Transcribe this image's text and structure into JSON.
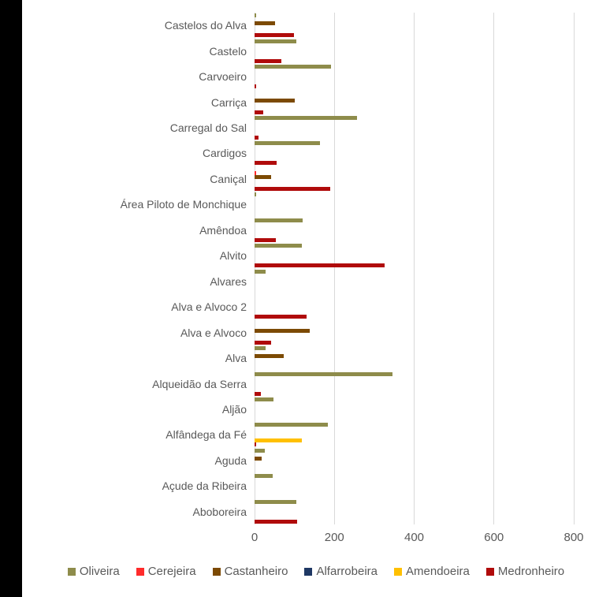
{
  "page": {
    "background_color": "#ffffff",
    "left_stripe_color": "#000000"
  },
  "chart_data": {
    "type": "bar",
    "orientation": "horizontal",
    "title": "",
    "xlabel": "",
    "ylabel": "",
    "grid": true,
    "legend_position": "bottom",
    "categories": [
      "Castelos do Alva",
      "Castelo",
      "Carvoeiro",
      "Carriça",
      "Carregal do Sal",
      "Cardigos",
      "Caniçal",
      "Área Piloto de Monchique",
      "Amêndoa",
      "Alvito",
      "Alvares",
      "Alva e Alvoco 2",
      "Alva e Alvoco",
      "Alva",
      "Alqueidão da Serra",
      "Aljão",
      "Alfândega da Fé",
      "Aguda",
      "Açude da Ribeira",
      "Aboboreira"
    ],
    "series": [
      {
        "name": "Oliveira",
        "color": "#8e8c4b",
        "values": [
          4,
          105,
          191,
          0,
          256,
          163,
          0,
          4,
          121,
          118,
          28,
          0,
          0,
          28,
          345,
          47,
          183,
          25,
          45,
          104
        ]
      },
      {
        "name": "Cerejeira",
        "color": "#ff2b2b",
        "values": [
          0,
          0,
          0,
          0,
          0,
          0,
          4,
          0,
          0,
          0,
          0,
          0,
          0,
          0,
          0,
          0,
          0,
          0,
          0,
          0
        ]
      },
      {
        "name": "Castanheiro",
        "color": "#7c4a03",
        "values": [
          51,
          0,
          0,
          101,
          0,
          0,
          42,
          0,
          0,
          0,
          0,
          0,
          138,
          74,
          0,
          0,
          0,
          18,
          0,
          0
        ]
      },
      {
        "name": "Alfarrobeira",
        "color": "#1f3864",
        "values": [
          0,
          0,
          0,
          0,
          0,
          0,
          0,
          0,
          0,
          0,
          0,
          0,
          0,
          0,
          0,
          0,
          0,
          0,
          0,
          0
        ]
      },
      {
        "name": "Amendoeira",
        "color": "#ffc000",
        "values": [
          0,
          0,
          0,
          0,
          0,
          0,
          0,
          0,
          0,
          0,
          0,
          0,
          0,
          0,
          0,
          0,
          119,
          0,
          0,
          0
        ]
      },
      {
        "name": "Medronheiro",
        "color": "#b00b0b",
        "values": [
          99,
          68,
          4,
          21,
          9,
          56,
          190,
          0,
          54,
          325,
          0,
          131,
          41,
          0,
          15,
          0,
          3,
          0,
          0,
          107
        ]
      }
    ],
    "x_axis": {
      "min": 0,
      "max": 800,
      "ticks": [
        "0",
        "200",
        "400",
        "600",
        "800"
      ]
    }
  }
}
